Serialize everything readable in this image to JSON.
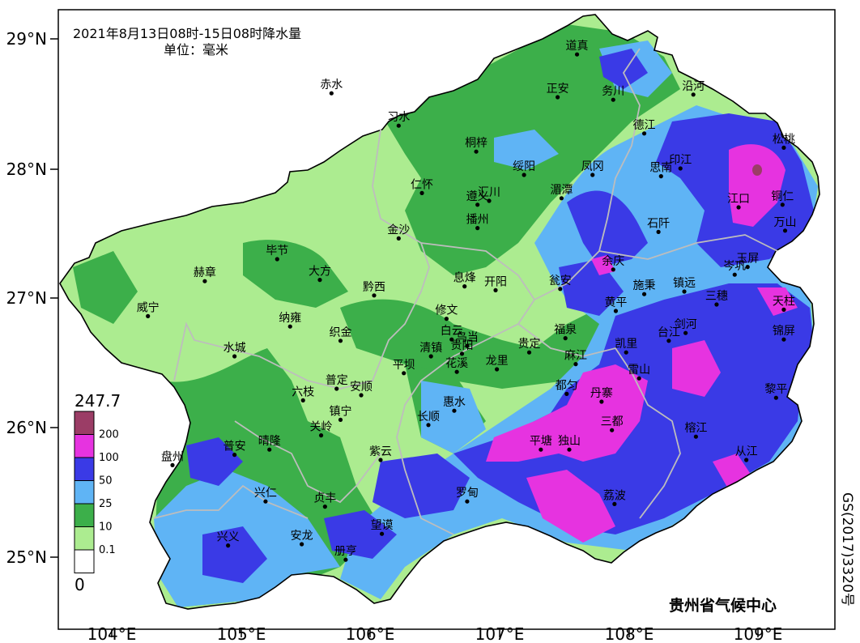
{
  "map": {
    "title": "2021年8月13日08时-15日08时降水量",
    "unit_label": "单位：毫米",
    "credit": "贵州省气候中心",
    "approval_number": "GS(2017)3320号",
    "lat_ticks": [
      "29°N",
      "28°N",
      "27°N",
      "26°N",
      "25°N"
    ],
    "lon_ticks": [
      "104°E",
      "105°E",
      "106°E",
      "107°E",
      "108°E",
      "109°E"
    ],
    "legend": {
      "max_label": "247.7",
      "min_label": "0",
      "classes": [
        {
          "label": "200",
          "color": "#9b3d66"
        },
        {
          "label": "100",
          "color": "#e633e0"
        },
        {
          "label": "50",
          "color": "#3a3ae6"
        },
        {
          "label": "25",
          "color": "#5fb4f5"
        },
        {
          "label": "10",
          "color": "#3caf4a"
        },
        {
          "label": "0.1",
          "color": "#acec90"
        },
        {
          "label": "",
          "color": "#ffffff"
        }
      ]
    },
    "cities": [
      {
        "name": "道真",
        "lon": 107.6,
        "lat": 28.88
      },
      {
        "name": "赤水",
        "lon": 105.7,
        "lat": 28.58
      },
      {
        "name": "正安",
        "lon": 107.45,
        "lat": 28.55
      },
      {
        "name": "务川",
        "lon": 107.88,
        "lat": 28.53
      },
      {
        "name": "沿河",
        "lon": 108.5,
        "lat": 28.57
      },
      {
        "name": "习水",
        "lon": 106.22,
        "lat": 28.33
      },
      {
        "name": "德江",
        "lon": 108.12,
        "lat": 28.27
      },
      {
        "name": "松桃",
        "lon": 109.2,
        "lat": 28.16
      },
      {
        "name": "桐梓",
        "lon": 106.82,
        "lat": 28.13
      },
      {
        "name": "印江",
        "lon": 108.4,
        "lat": 28.0
      },
      {
        "name": "凤冈",
        "lon": 107.72,
        "lat": 27.95
      },
      {
        "name": "思南",
        "lon": 108.25,
        "lat": 27.94
      },
      {
        "name": "绥阳",
        "lon": 107.19,
        "lat": 27.95
      },
      {
        "name": "仁怀",
        "lon": 106.4,
        "lat": 27.81
      },
      {
        "name": "湄潭",
        "lon": 107.48,
        "lat": 27.77
      },
      {
        "name": "汇川",
        "lon": 106.92,
        "lat": 27.75
      },
      {
        "name": "遵义",
        "lon": 106.83,
        "lat": 27.72
      },
      {
        "name": "江口",
        "lon": 108.85,
        "lat": 27.7
      },
      {
        "name": "铜仁",
        "lon": 109.19,
        "lat": 27.72
      },
      {
        "name": "播州",
        "lon": 106.83,
        "lat": 27.54
      },
      {
        "name": "石阡",
        "lon": 108.23,
        "lat": 27.51
      },
      {
        "name": "万山",
        "lon": 109.21,
        "lat": 27.52
      },
      {
        "name": "金沙",
        "lon": 106.22,
        "lat": 27.46
      },
      {
        "name": "毕节",
        "lon": 105.28,
        "lat": 27.3
      },
      {
        "name": "余庆",
        "lon": 107.88,
        "lat": 27.22
      },
      {
        "name": "岑巩",
        "lon": 108.82,
        "lat": 27.18
      },
      {
        "name": "玉屏",
        "lon": 108.92,
        "lat": 27.24
      },
      {
        "name": "赫章",
        "lon": 104.72,
        "lat": 27.13
      },
      {
        "name": "大方",
        "lon": 105.61,
        "lat": 27.14
      },
      {
        "name": "息烽",
        "lon": 106.73,
        "lat": 27.09
      },
      {
        "name": "开阳",
        "lon": 106.97,
        "lat": 27.06
      },
      {
        "name": "瓮安",
        "lon": 107.47,
        "lat": 27.07
      },
      {
        "name": "施秉",
        "lon": 108.12,
        "lat": 27.03
      },
      {
        "name": "镇远",
        "lon": 108.43,
        "lat": 27.05
      },
      {
        "name": "三穗",
        "lon": 108.68,
        "lat": 26.95
      },
      {
        "name": "黔西",
        "lon": 106.03,
        "lat": 27.02
      },
      {
        "name": "威宁",
        "lon": 104.28,
        "lat": 26.86
      },
      {
        "name": "黄平",
        "lon": 107.9,
        "lat": 26.9
      },
      {
        "name": "天柱",
        "lon": 109.2,
        "lat": 26.91
      },
      {
        "name": "修文",
        "lon": 106.59,
        "lat": 26.84
      },
      {
        "name": "纳雍",
        "lon": 105.38,
        "lat": 26.78
      },
      {
        "name": "剑河",
        "lon": 108.44,
        "lat": 26.73
      },
      {
        "name": "台江",
        "lon": 108.31,
        "lat": 26.67
      },
      {
        "name": "锦屏",
        "lon": 109.2,
        "lat": 26.68
      },
      {
        "name": "织金",
        "lon": 105.77,
        "lat": 26.67
      },
      {
        "name": "白云",
        "lon": 106.63,
        "lat": 26.68
      },
      {
        "name": "乌当",
        "lon": 106.75,
        "lat": 26.63
      },
      {
        "name": "福泉",
        "lon": 107.51,
        "lat": 26.69
      },
      {
        "name": "贵定",
        "lon": 107.23,
        "lat": 26.58
      },
      {
        "name": "凯里",
        "lon": 107.98,
        "lat": 26.58
      },
      {
        "name": "水城",
        "lon": 104.95,
        "lat": 26.55
      },
      {
        "name": "清镇",
        "lon": 106.47,
        "lat": 26.55
      },
      {
        "name": "贵阳",
        "lon": 106.71,
        "lat": 26.57
      },
      {
        "name": "麻江",
        "lon": 107.59,
        "lat": 26.49
      },
      {
        "name": "龙里",
        "lon": 106.98,
        "lat": 26.45
      },
      {
        "name": "平坝",
        "lon": 106.26,
        "lat": 26.42
      },
      {
        "name": "花溪",
        "lon": 106.67,
        "lat": 26.43
      },
      {
        "name": "雷山",
        "lon": 108.08,
        "lat": 26.38
      },
      {
        "name": "普定",
        "lon": 105.74,
        "lat": 26.3
      },
      {
        "name": "安顺",
        "lon": 105.93,
        "lat": 26.25
      },
      {
        "name": "都匀",
        "lon": 107.52,
        "lat": 26.26
      },
      {
        "name": "六枝",
        "lon": 105.48,
        "lat": 26.21
      },
      {
        "name": "丹寨",
        "lon": 107.79,
        "lat": 26.2
      },
      {
        "name": "黎平",
        "lon": 109.14,
        "lat": 26.23
      },
      {
        "name": "惠水",
        "lon": 106.65,
        "lat": 26.13
      },
      {
        "name": "镇宁",
        "lon": 105.77,
        "lat": 26.06
      },
      {
        "name": "长顺",
        "lon": 106.45,
        "lat": 26.02
      },
      {
        "name": "三都",
        "lon": 107.87,
        "lat": 25.98
      },
      {
        "name": "关岭",
        "lon": 105.62,
        "lat": 25.94
      },
      {
        "name": "榕江",
        "lon": 108.52,
        "lat": 25.93
      },
      {
        "name": "晴隆",
        "lon": 105.22,
        "lat": 25.83
      },
      {
        "name": "平塘",
        "lon": 107.32,
        "lat": 25.83
      },
      {
        "name": "独山",
        "lon": 107.54,
        "lat": 25.83
      },
      {
        "name": "普安",
        "lon": 104.95,
        "lat": 25.79
      },
      {
        "name": "紫云",
        "lon": 106.08,
        "lat": 25.75
      },
      {
        "name": "从江",
        "lon": 108.91,
        "lat": 25.75
      },
      {
        "name": "盘州",
        "lon": 104.47,
        "lat": 25.71
      },
      {
        "name": "罗甸",
        "lon": 106.75,
        "lat": 25.43
      },
      {
        "name": "荔波",
        "lon": 107.89,
        "lat": 25.41
      },
      {
        "name": "兴仁",
        "lon": 105.19,
        "lat": 25.43
      },
      {
        "name": "贞丰",
        "lon": 105.65,
        "lat": 25.39
      },
      {
        "name": "望谟",
        "lon": 106.09,
        "lat": 25.18
      },
      {
        "name": "兴义",
        "lon": 104.9,
        "lat": 25.09
      },
      {
        "name": "安龙",
        "lon": 105.47,
        "lat": 25.1
      },
      {
        "name": "册亨",
        "lon": 105.81,
        "lat": 24.98
      }
    ]
  }
}
